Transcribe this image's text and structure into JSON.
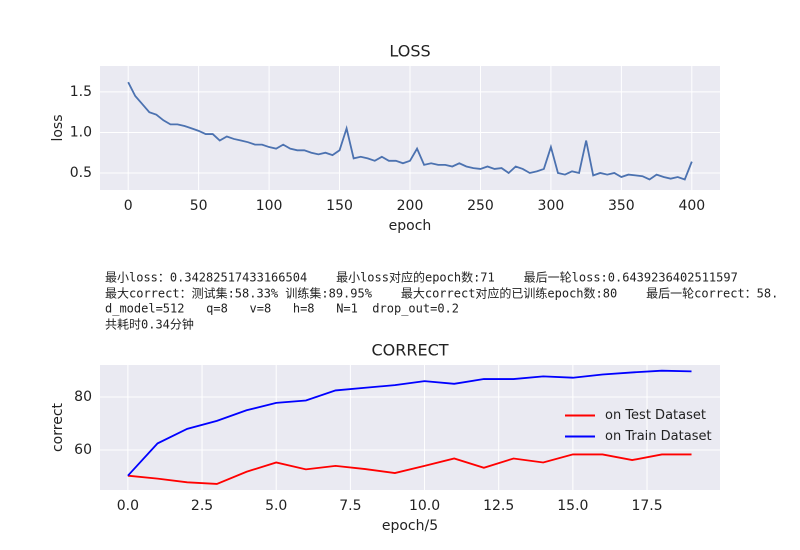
{
  "chart_data": [
    {
      "type": "line",
      "title": "LOSS",
      "x_label": "epoch",
      "y_label": "loss",
      "x": [
        0,
        5,
        10,
        15,
        20,
        25,
        30,
        35,
        40,
        45,
        50,
        55,
        60,
        65,
        70,
        75,
        80,
        85,
        90,
        95,
        100,
        105,
        110,
        115,
        120,
        125,
        130,
        135,
        140,
        145,
        150,
        155,
        160,
        165,
        170,
        175,
        180,
        185,
        190,
        195,
        200,
        205,
        210,
        215,
        220,
        225,
        230,
        235,
        240,
        245,
        250,
        255,
        260,
        265,
        270,
        275,
        280,
        285,
        290,
        295,
        300,
        305,
        310,
        315,
        320,
        325,
        330,
        335,
        340,
        345,
        350,
        355,
        360,
        365,
        370,
        375,
        380,
        385,
        390,
        395,
        400
      ],
      "series": [
        {
          "name": "loss",
          "color": "#4c72b0",
          "values": [
            1.62,
            1.45,
            1.35,
            1.25,
            1.22,
            1.15,
            1.1,
            1.1,
            1.08,
            1.05,
            1.02,
            0.98,
            0.98,
            0.9,
            0.95,
            0.92,
            0.9,
            0.88,
            0.85,
            0.85,
            0.82,
            0.8,
            0.85,
            0.8,
            0.78,
            0.78,
            0.75,
            0.73,
            0.75,
            0.72,
            0.78,
            1.05,
            0.68,
            0.7,
            0.68,
            0.65,
            0.7,
            0.65,
            0.65,
            0.62,
            0.65,
            0.8,
            0.6,
            0.62,
            0.6,
            0.6,
            0.58,
            0.62,
            0.58,
            0.56,
            0.55,
            0.58,
            0.55,
            0.56,
            0.5,
            0.58,
            0.55,
            0.5,
            0.52,
            0.55,
            0.82,
            0.5,
            0.48,
            0.52,
            0.5,
            0.9,
            0.47,
            0.5,
            0.48,
            0.5,
            0.45,
            0.48,
            0.47,
            0.46,
            0.42,
            0.48,
            0.45,
            0.43,
            0.45,
            0.42,
            0.64
          ]
        }
      ],
      "xlim": [
        -20,
        420
      ],
      "ylim": [
        0.29,
        1.82
      ],
      "xticks": [
        0,
        50,
        100,
        150,
        200,
        250,
        300,
        350,
        400
      ],
      "yticks": [
        0.5,
        {
          "value": 1.0,
          "label": "1.0"
        },
        1.5
      ],
      "grid": true
    },
    {
      "type": "line",
      "title": "CORRECT",
      "x_label": "epoch/5",
      "y_label": "correct",
      "x": [
        0,
        1,
        2,
        3,
        4,
        5,
        6,
        7,
        8,
        9,
        10,
        11,
        12,
        13,
        14,
        15,
        16,
        17,
        18,
        19
      ],
      "series": [
        {
          "name": "on Test Dataset",
          "color": "#ff0000",
          "values": [
            50.3,
            49.2,
            47.8,
            47.2,
            51.8,
            55.3,
            52.7,
            54,
            52.8,
            51.3,
            54,
            56.8,
            53.3,
            56.8,
            55.3,
            58.33,
            58.33,
            56.2,
            58.33,
            58.33
          ]
        },
        {
          "name": "on Train Dataset",
          "color": "#0000ff",
          "values": [
            50.3,
            62.5,
            68,
            71,
            75,
            77.8,
            78.7,
            82.5,
            83.5,
            84.5,
            86,
            85,
            86.8,
            86.8,
            87.8,
            87.3,
            88.5,
            89.3,
            89.95,
            89.7
          ]
        }
      ],
      "xlim": [
        -0.94,
        19.96
      ],
      "ylim": [
        44.9,
        92.1
      ],
      "xticks": [
        {
          "value": 0,
          "label": "0.0"
        },
        2.5,
        {
          "value": 5,
          "label": "5.0"
        },
        7.5,
        {
          "value": 10,
          "label": "10.0"
        },
        12.5,
        {
          "value": 15,
          "label": "15.0"
        },
        17.5
      ],
      "yticks": [
        60,
        80
      ],
      "grid": true,
      "legend": "right"
    }
  ],
  "notes": [
    "最小loss：0.34282517433166504    最小loss对应的epoch数:71    最后一轮loss:0.6439236402511597",
    "最大correct：测试集:58.33% 训练集:89.95%    最大correct对应的已训练epoch数:80    最后一轮correct：58.",
    "d_model=512   q=8   v=8   h=8   N=1  drop_out=0.2",
    "共耗时0.34分钟"
  ]
}
